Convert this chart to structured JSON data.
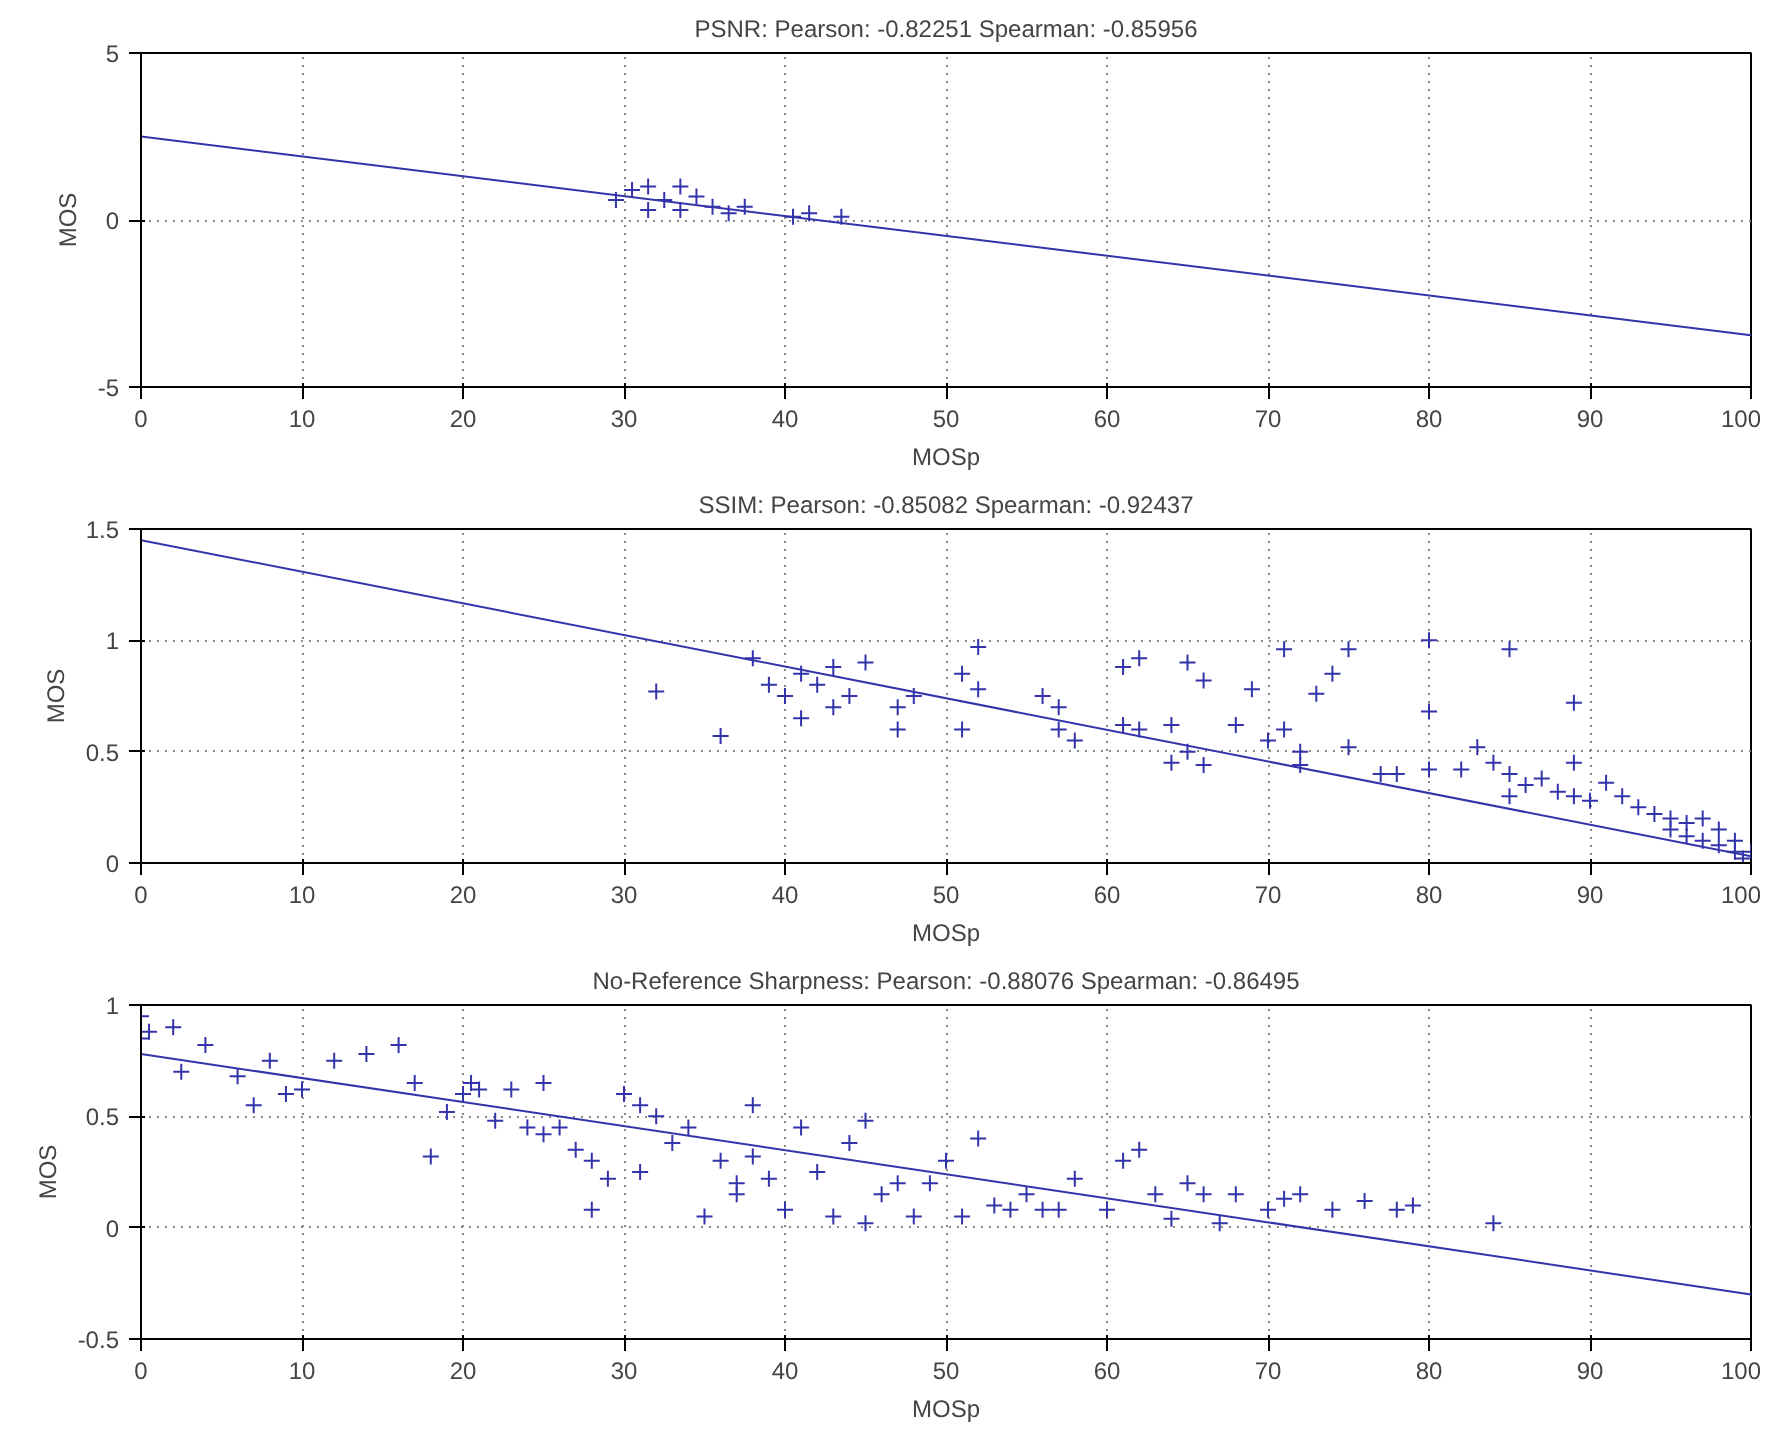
{
  "chart_data": [
    {
      "type": "scatter",
      "title": "PSNR: Pearson: -0.82251 Spearman: -0.85956",
      "xlabel": "MOSp",
      "ylabel": "MOS",
      "xlim": [
        0,
        100
      ],
      "ylim": [
        -5,
        5
      ],
      "xticks": [
        0,
        10,
        20,
        30,
        40,
        50,
        60,
        70,
        80,
        90,
        100
      ],
      "yticks": [
        -5,
        0,
        5
      ],
      "grid": true,
      "series": [
        {
          "color": "#3333aa",
          "marker": "cross",
          "x": [
            29.5,
            30.5,
            31.5,
            31.5,
            32.5,
            33.5,
            33.5,
            34.5,
            35.5,
            36.5,
            37.5,
            40.5,
            41.5,
            43.5
          ],
          "values": [
            0.6,
            0.9,
            1.0,
            0.3,
            0.6,
            1.0,
            0.3,
            0.7,
            0.4,
            0.2,
            0.4,
            0.1,
            0.2,
            0.1
          ]
        },
        {
          "type": "line",
          "color": "#3333aa",
          "x": [
            0,
            100
          ],
          "values": [
            2.5,
            -3.45
          ]
        }
      ]
    },
    {
      "type": "scatter",
      "title": "SSIM: Pearson: -0.85082 Spearman: -0.92437",
      "xlabel": "MOSp",
      "ylabel": "MOS",
      "xlim": [
        0,
        100
      ],
      "ylim": [
        0,
        1.5
      ],
      "xticks": [
        0,
        10,
        20,
        30,
        40,
        50,
        60,
        70,
        80,
        90,
        100
      ],
      "yticks": [
        0,
        0.5,
        1,
        1.5
      ],
      "grid": true,
      "series": [
        {
          "color": "#3333aa",
          "marker": "cross",
          "x": [
            32,
            36,
            38,
            39,
            40,
            41,
            41,
            42,
            43,
            43,
            44,
            45,
            47,
            47,
            48,
            51,
            51,
            52,
            52,
            56,
            57,
            57,
            58,
            61,
            61,
            62,
            62,
            64,
            64,
            65,
            65,
            66,
            66,
            68,
            69,
            70,
            71,
            71,
            72,
            72,
            73,
            74,
            75,
            75,
            77,
            78,
            80,
            80,
            80,
            82,
            83,
            84,
            85,
            85,
            85,
            86,
            87,
            88,
            89,
            89,
            89,
            90,
            91,
            92,
            93,
            94,
            95,
            95,
            96,
            96,
            97,
            97,
            98,
            98,
            99,
            99,
            99.5,
            100
          ],
          "values": [
            0.77,
            0.57,
            0.92,
            0.8,
            0.75,
            0.65,
            0.85,
            0.8,
            0.7,
            0.88,
            0.75,
            0.9,
            0.6,
            0.7,
            0.75,
            0.85,
            0.6,
            0.97,
            0.78,
            0.75,
            0.7,
            0.6,
            0.55,
            0.88,
            0.62,
            0.92,
            0.6,
            0.62,
            0.45,
            0.9,
            0.5,
            0.82,
            0.44,
            0.62,
            0.78,
            0.55,
            0.6,
            0.96,
            0.5,
            0.44,
            0.76,
            0.85,
            0.96,
            0.52,
            0.4,
            0.4,
            1.0,
            0.68,
            0.42,
            0.42,
            0.52,
            0.45,
            0.4,
            0.3,
            0.96,
            0.35,
            0.38,
            0.32,
            0.72,
            0.45,
            0.3,
            0.28,
            0.36,
            0.3,
            0.25,
            0.22,
            0.2,
            0.15,
            0.18,
            0.12,
            0.1,
            0.2,
            0.08,
            0.15,
            0.05,
            0.1,
            0.02,
            0.05
          ]
        },
        {
          "type": "line",
          "color": "#3333aa",
          "x": [
            0,
            100
          ],
          "values": [
            1.45,
            0.03
          ]
        }
      ]
    },
    {
      "type": "scatter",
      "title": "No-Reference Sharpness: Pearson: -0.88076 Spearman: -0.86495",
      "xlabel": "MOSp",
      "ylabel": "MOS",
      "xlim": [
        0,
        100
      ],
      "ylim": [
        -0.5,
        1
      ],
      "xticks": [
        0,
        10,
        20,
        30,
        40,
        50,
        60,
        70,
        80,
        90,
        100
      ],
      "yticks": [
        -0.5,
        0,
        0.5,
        1
      ],
      "grid": true,
      "series": [
        {
          "color": "#3333aa",
          "marker": "cross",
          "x": [
            0,
            0,
            0.5,
            2,
            2.5,
            4,
            6,
            7,
            8,
            9,
            10,
            12,
            14,
            16,
            17,
            18,
            19,
            20,
            20.5,
            21,
            22,
            23,
            24,
            25,
            25,
            26,
            27,
            28,
            28,
            29,
            30,
            31,
            31,
            32,
            33,
            34,
            35,
            36,
            37,
            37,
            38,
            38,
            39,
            40,
            41,
            42,
            43,
            44,
            45,
            45,
            46,
            47,
            48,
            49,
            50,
            51,
            52,
            53,
            54,
            55,
            56,
            57,
            58,
            60,
            61,
            62,
            63,
            64,
            65,
            66,
            67,
            68,
            70,
            71,
            72,
            74,
            76,
            78,
            79,
            84
          ],
          "values": [
            0.95,
            0.85,
            0.88,
            0.9,
            0.7,
            0.82,
            0.68,
            0.55,
            0.75,
            0.6,
            0.62,
            0.75,
            0.78,
            0.82,
            0.65,
            0.32,
            0.52,
            0.6,
            0.65,
            0.62,
            0.48,
            0.62,
            0.45,
            0.65,
            0.42,
            0.45,
            0.35,
            0.3,
            0.08,
            0.22,
            0.6,
            0.55,
            0.25,
            0.5,
            0.38,
            0.45,
            0.05,
            0.3,
            0.15,
            0.2,
            0.55,
            0.32,
            0.22,
            0.08,
            0.45,
            0.25,
            0.05,
            0.38,
            0.02,
            0.48,
            0.15,
            0.2,
            0.05,
            0.2,
            0.3,
            0.05,
            0.4,
            0.1,
            0.08,
            0.15,
            0.08,
            0.08,
            0.22,
            0.08,
            0.3,
            0.35,
            0.15,
            0.04,
            0.2,
            0.15,
            0.02,
            0.15,
            0.08,
            0.13,
            0.15,
            0.08,
            0.12,
            0.08,
            0.1,
            0.02
          ]
        },
        {
          "type": "line",
          "color": "#3333aa",
          "x": [
            0,
            100
          ],
          "values": [
            0.78,
            -0.3
          ]
        }
      ]
    }
  ]
}
